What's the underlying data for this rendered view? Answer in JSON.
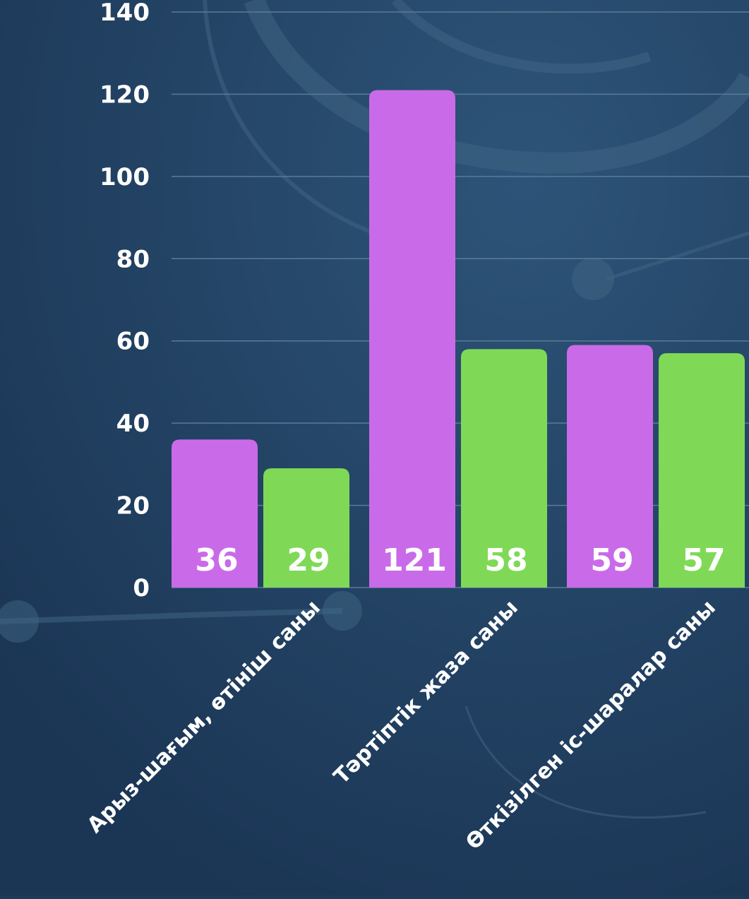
{
  "chart_data": {
    "type": "bar",
    "categories": [
      "Арыз-шағым, өтініш саны",
      "Тәртіптік жаза саны",
      "Өткізілген іс-шаралар саны"
    ],
    "series": [
      {
        "values": [
          36,
          121,
          59
        ],
        "color": "#c96be8"
      },
      {
        "values": [
          29,
          58,
          57
        ],
        "color": "#7fd957"
      }
    ],
    "y_ticks": [
      "0",
      "20",
      "40",
      "60",
      "80",
      "100",
      "120",
      "140"
    ],
    "ylim": [
      0,
      140
    ],
    "grid": true,
    "data_labels": true,
    "background_color": "#1e3a5a",
    "gridline_color": "#5b7a98"
  }
}
